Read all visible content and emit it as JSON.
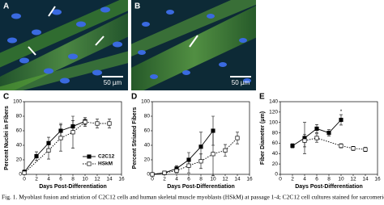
{
  "panels": [
    {
      "label": "A",
      "scale": "50 µm"
    },
    {
      "label": "B",
      "scale": "50 µm"
    }
  ],
  "chart_data": [
    {
      "type": "line",
      "label": "C",
      "ylabel": "Percent Nuclei in Fibers",
      "xlabel": "Days Post-Differentiation",
      "xlim": [
        0,
        16
      ],
      "xticks": [
        0,
        2,
        4,
        6,
        8,
        10,
        12,
        14,
        16
      ],
      "ylim": [
        0,
        100
      ],
      "yticks": [
        0,
        20,
        40,
        60,
        80,
        100
      ],
      "legend": "lower right",
      "series": [
        {
          "name": "C2C12",
          "color": "#000000",
          "marker": "filled",
          "linestyle": "solid",
          "x": [
            0,
            2,
            4,
            6,
            8,
            10
          ],
          "values": [
            3,
            25,
            43,
            60,
            66,
            73
          ],
          "errors": [
            3,
            6,
            8,
            10,
            8,
            5
          ]
        },
        {
          "name": "HSkM",
          "color": "#000000",
          "marker": "open",
          "linestyle": "dotted",
          "x": [
            0,
            4,
            6,
            8,
            10,
            12,
            14
          ],
          "values": [
            2,
            33,
            50,
            58,
            72,
            70,
            70
          ],
          "errors": [
            2,
            12,
            18,
            22,
            6,
            6,
            6
          ]
        }
      ]
    },
    {
      "type": "line",
      "label": "D",
      "ylabel": "Percent Striated Fibers",
      "xlabel": "Days Post-Differentiation",
      "xlim": [
        0,
        16
      ],
      "xticks": [
        0,
        2,
        4,
        6,
        8,
        10,
        12,
        14,
        16
      ],
      "ylim": [
        0,
        100
      ],
      "yticks": [
        0,
        20,
        40,
        60,
        80,
        100
      ],
      "series": [
        {
          "name": "C2C12",
          "color": "#000000",
          "marker": "filled",
          "linestyle": "solid",
          "x": [
            0,
            2,
            4,
            6,
            8,
            10
          ],
          "values": [
            0,
            2,
            8,
            20,
            38,
            60
          ],
          "errors": [
            0,
            2,
            4,
            10,
            20,
            20
          ]
        },
        {
          "name": "HSkM",
          "color": "#000000",
          "marker": "open",
          "linestyle": "dotted",
          "x": [
            0,
            2,
            4,
            6,
            8,
            10,
            12,
            14
          ],
          "values": [
            0,
            2,
            5,
            12,
            18,
            28,
            33,
            50
          ],
          "errors": [
            0,
            1,
            3,
            10,
            10,
            30,
            8,
            8
          ]
        }
      ]
    },
    {
      "type": "line",
      "label": "E",
      "ylabel": "Fiber Diameter (μm)",
      "xlabel": "Days Post-Differentiation",
      "xlim": [
        0,
        16
      ],
      "xticks": [
        0,
        2,
        4,
        6,
        8,
        10,
        12,
        14,
        16
      ],
      "ylim": [
        0,
        140
      ],
      "yticks": [
        0,
        20,
        40,
        60,
        80,
        100,
        120,
        140
      ],
      "annotation": "*",
      "series": [
        {
          "name": "C2C12",
          "color": "#000000",
          "marker": "filled",
          "linestyle": "solid",
          "x": [
            2,
            4,
            6,
            8,
            10
          ],
          "values": [
            55,
            70,
            88,
            80,
            105
          ],
          "errors": [
            4,
            30,
            8,
            6,
            10
          ]
        },
        {
          "name": "HSkM",
          "color": "#000000",
          "marker": "open",
          "linestyle": "dotted",
          "x": [
            4,
            6,
            10,
            12,
            14
          ],
          "values": [
            65,
            70,
            55,
            50,
            48
          ],
          "errors": [
            12,
            8,
            4,
            4,
            4
          ]
        }
      ]
    }
  ],
  "caption": "Fig. 1. Myoblast fusion and striation of C2C12 cells and human skeletal muscle myoblasts (HSkM) at passage 1-4; C2C12 cell cultures stained for sarcomeric"
}
